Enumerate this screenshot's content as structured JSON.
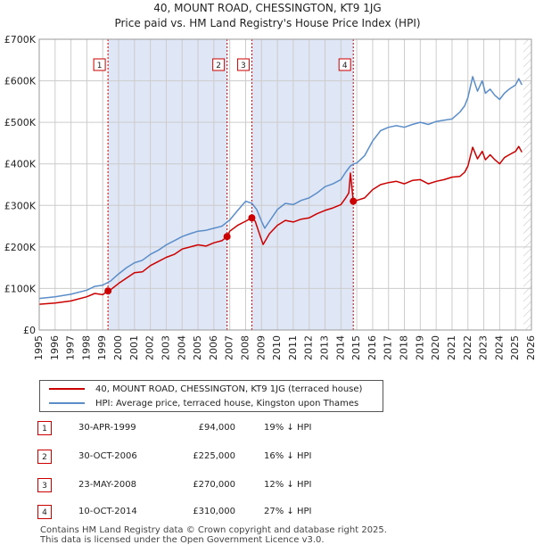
{
  "chart_data": {
    "type": "line",
    "title": "40, MOUNT ROAD, CHESSINGTON, KT9 1JG",
    "subtitle": "Price paid vs. HM Land Registry's House Price Index (HPI)",
    "xlim": [
      1995,
      2026
    ],
    "ylim": [
      0,
      700000
    ],
    "y_ticks": [
      0,
      100000,
      200000,
      300000,
      400000,
      500000,
      600000,
      700000
    ],
    "y_tick_labels": [
      "£0",
      "£100K",
      "£200K",
      "£300K",
      "£400K",
      "£500K",
      "£600K",
      "£700K"
    ],
    "x_ticks": [
      1995,
      1996,
      1997,
      1998,
      1999,
      2000,
      2001,
      2002,
      2003,
      2004,
      2005,
      2006,
      2007,
      2008,
      2009,
      2010,
      2011,
      2012,
      2013,
      2014,
      2015,
      2016,
      2017,
      2018,
      2019,
      2020,
      2021,
      2022,
      2023,
      2024,
      2025,
      2026
    ],
    "x_tick_labels": [
      "1995",
      "1996",
      "1997",
      "1998",
      "1999",
      "2000",
      "2001",
      "2002",
      "2003",
      "2004",
      "2005",
      "2006",
      "2007",
      "2008",
      "2009",
      "2010",
      "2011",
      "2012",
      "2013",
      "2014",
      "2015",
      "2016",
      "2017",
      "2018",
      "2019",
      "2020",
      "2021",
      "2022",
      "2023",
      "2024",
      "2025",
      "2026"
    ],
    "series": [
      {
        "name": "40, MOUNT ROAD, CHESSINGTON, KT9 1JG (terraced house)",
        "color": "#cc0000",
        "x": [
          1995.0,
          1996.0,
          1997.0,
          1998.0,
          1998.5,
          1999.0,
          1999.33,
          1999.5,
          2000.0,
          2000.5,
          2001.0,
          2001.5,
          2002.0,
          2002.5,
          2003.0,
          2003.5,
          2004.0,
          2004.5,
          2005.0,
          2005.5,
          2006.0,
          2006.5,
          2006.83,
          2007.0,
          2007.5,
          2008.0,
          2008.39,
          2008.6,
          2008.9,
          2009.1,
          2009.5,
          2010.0,
          2010.5,
          2011.0,
          2011.5,
          2012.0,
          2012.5,
          2013.0,
          2013.5,
          2014.0,
          2014.3,
          2014.5,
          2014.6,
          2014.78,
          2015.0,
          2015.5,
          2016.0,
          2016.5,
          2017.0,
          2017.5,
          2018.0,
          2018.5,
          2019.0,
          2019.5,
          2020.0,
          2020.5,
          2021.0,
          2021.5,
          2021.8,
          2022.0,
          2022.3,
          2022.6,
          2022.9,
          2023.1,
          2023.4,
          2023.7,
          2024.0,
          2024.3,
          2024.6,
          2025.0,
          2025.2,
          2025.4
        ],
        "y": [
          62000,
          65000,
          70000,
          80000,
          88000,
          85000,
          94000,
          97000,
          112000,
          125000,
          138000,
          140000,
          155000,
          165000,
          175000,
          182000,
          195000,
          200000,
          205000,
          202000,
          210000,
          215000,
          225000,
          238000,
          252000,
          262000,
          270000,
          262000,
          228000,
          206000,
          232000,
          252000,
          264000,
          260000,
          267000,
          270000,
          280000,
          288000,
          294000,
          302000,
          318000,
          330000,
          378000,
          310000,
          312000,
          318000,
          338000,
          350000,
          355000,
          358000,
          352000,
          360000,
          362000,
          352000,
          358000,
          362000,
          368000,
          370000,
          380000,
          395000,
          440000,
          412000,
          430000,
          410000,
          422000,
          410000,
          400000,
          415000,
          422000,
          430000,
          442000,
          428000
        ]
      },
      {
        "name": "HPI: Average price, terraced house, Kingston upon Thames",
        "color": "#5b8dc9",
        "x": [
          1995.0,
          1996.0,
          1997.0,
          1998.0,
          1998.5,
          1999.0,
          1999.5,
          2000.0,
          2000.5,
          2001.0,
          2001.5,
          2002.0,
          2002.5,
          2003.0,
          2003.5,
          2004.0,
          2004.5,
          2005.0,
          2005.5,
          2006.0,
          2006.5,
          2007.0,
          2007.5,
          2008.0,
          2008.4,
          2008.7,
          2009.0,
          2009.2,
          2009.5,
          2010.0,
          2010.5,
          2011.0,
          2011.5,
          2012.0,
          2012.5,
          2013.0,
          2013.5,
          2014.0,
          2014.3,
          2014.6,
          2014.8,
          2015.0,
          2015.5,
          2016.0,
          2016.5,
          2017.0,
          2017.5,
          2018.0,
          2018.5,
          2019.0,
          2019.5,
          2020.0,
          2020.5,
          2021.0,
          2021.5,
          2021.8,
          2022.0,
          2022.3,
          2022.6,
          2022.9,
          2023.1,
          2023.4,
          2023.7,
          2024.0,
          2024.3,
          2024.6,
          2025.0,
          2025.2,
          2025.4
        ],
        "y": [
          76000,
          80000,
          86000,
          96000,
          105000,
          108000,
          118000,
          135000,
          150000,
          162000,
          168000,
          182000,
          192000,
          205000,
          215000,
          225000,
          232000,
          238000,
          240000,
          245000,
          250000,
          265000,
          288000,
          310000,
          305000,
          290000,
          262000,
          245000,
          262000,
          290000,
          305000,
          302000,
          312000,
          318000,
          330000,
          345000,
          352000,
          362000,
          380000,
          395000,
          400000,
          402000,
          420000,
          455000,
          480000,
          488000,
          492000,
          488000,
          495000,
          500000,
          495000,
          502000,
          505000,
          508000,
          525000,
          540000,
          560000,
          610000,
          575000,
          600000,
          570000,
          580000,
          565000,
          555000,
          570000,
          580000,
          590000,
          605000,
          590000
        ]
      }
    ],
    "sales": [
      {
        "marker": "1",
        "x": 1999.33,
        "y": 94000
      },
      {
        "marker": "2",
        "x": 2006.83,
        "y": 225000
      },
      {
        "marker": "3",
        "x": 2008.39,
        "y": 270000
      },
      {
        "marker": "4",
        "x": 2014.78,
        "y": 310000
      }
    ],
    "shaded_ranges": [
      [
        1999.33,
        2006.83
      ],
      [
        2008.39,
        2014.78
      ]
    ],
    "future_hatch_from": 2025.5,
    "colors": {
      "price_line": "#cc0000",
      "hpi_line": "#5b8dc9",
      "shade": "#dfe6f5",
      "grid": "#cccccc"
    }
  },
  "legend": {
    "property_label": "40, MOUNT ROAD, CHESSINGTON, KT9 1JG (terraced house)",
    "hpi_label": "HPI: Average price, terraced house, Kingston upon Thames"
  },
  "sales_table": [
    {
      "num": "1",
      "date": "30-APR-1999",
      "price": "£94,000",
      "hpi": "19% ↓ HPI"
    },
    {
      "num": "2",
      "date": "30-OCT-2006",
      "price": "£225,000",
      "hpi": "16% ↓ HPI"
    },
    {
      "num": "3",
      "date": "23-MAY-2008",
      "price": "£270,000",
      "hpi": "12% ↓ HPI"
    },
    {
      "num": "4",
      "date": "10-OCT-2014",
      "price": "£310,000",
      "hpi": "27% ↓ HPI"
    }
  ],
  "footer": {
    "line1": "Contains HM Land Registry data © Crown copyright and database right 2025.",
    "line2": "This data is licensed under the Open Government Licence v3.0."
  }
}
